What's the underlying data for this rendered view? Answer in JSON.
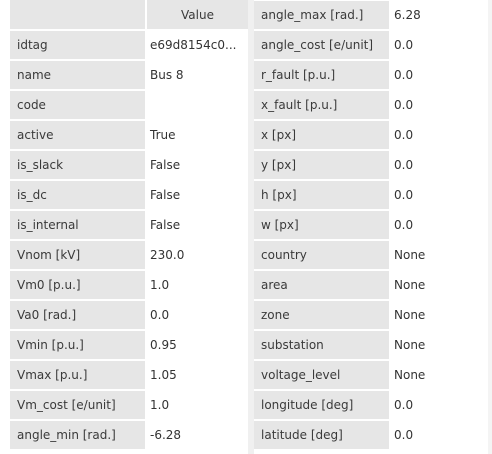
{
  "left_table": {
    "column_header": "Value",
    "rows": [
      {
        "key": "idtag",
        "value": "e69d8154c0..."
      },
      {
        "key": "name",
        "value": "Bus 8"
      },
      {
        "key": "code",
        "value": ""
      },
      {
        "key": "active",
        "value": "True"
      },
      {
        "key": "is_slack",
        "value": "False"
      },
      {
        "key": "is_dc",
        "value": "False"
      },
      {
        "key": "is_internal",
        "value": "False"
      },
      {
        "key": "Vnom [kV]",
        "value": "230.0"
      },
      {
        "key": "Vm0 [p.u.]",
        "value": "1.0"
      },
      {
        "key": "Va0 [rad.]",
        "value": "0.0"
      },
      {
        "key": "Vmin [p.u.]",
        "value": "0.95"
      },
      {
        "key": "Vmax [p.u.]",
        "value": "1.05"
      },
      {
        "key": "Vm_cost [e/unit]",
        "value": "1.0"
      },
      {
        "key": "angle_min [rad.]",
        "value": "-6.28"
      }
    ]
  },
  "right_table": {
    "rows": [
      {
        "key": "angle_max [rad.]",
        "value": "6.28"
      },
      {
        "key": "angle_cost [e/unit]",
        "value": "0.0"
      },
      {
        "key": "r_fault [p.u.]",
        "value": "0.0"
      },
      {
        "key": "x_fault [p.u.]",
        "value": "0.0"
      },
      {
        "key": "x [px]",
        "value": "0.0"
      },
      {
        "key": "y [px]",
        "value": "0.0"
      },
      {
        "key": "h [px]",
        "value": "0.0"
      },
      {
        "key": "w [px]",
        "value": "0.0"
      },
      {
        "key": "country",
        "value": "None"
      },
      {
        "key": "area",
        "value": "None"
      },
      {
        "key": "zone",
        "value": "None"
      },
      {
        "key": "substation",
        "value": "None"
      },
      {
        "key": "voltage_level",
        "value": "None"
      },
      {
        "key": "longitude [deg]",
        "value": "0.0"
      },
      {
        "key": "latitude [deg]",
        "value": "0.0"
      }
    ]
  }
}
